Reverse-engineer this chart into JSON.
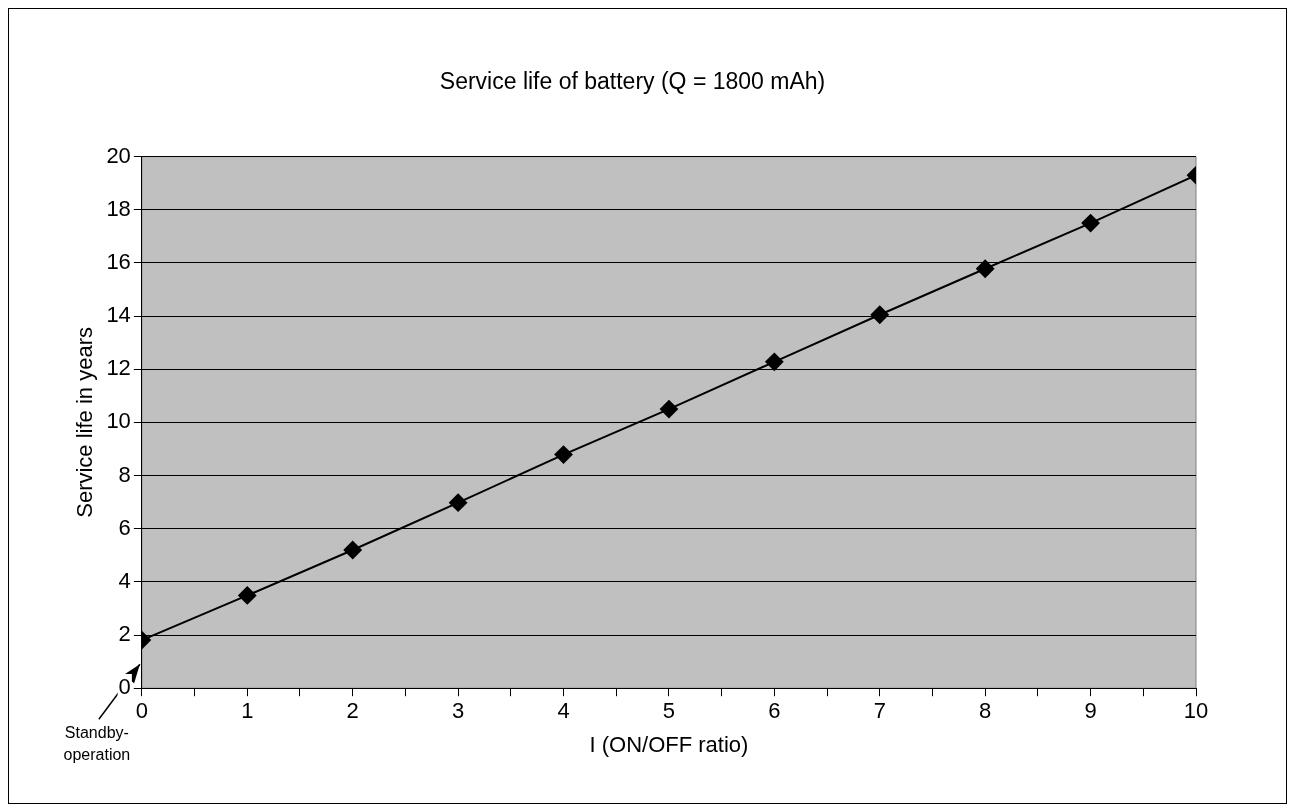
{
  "chart_data": {
    "type": "line",
    "title": "Service life of battery (Q = 1800 mAh)",
    "xlabel": "I (ON/OFF ratio)",
    "ylabel": "Service life in years",
    "x": [
      0,
      1,
      2,
      3,
      4,
      5,
      6,
      7,
      8,
      9,
      10
    ],
    "series": [
      {
        "color": "#000000",
        "values": [
          1.81,
          3.49,
          5.2,
          6.98,
          8.79,
          10.5,
          12.28,
          14.05,
          15.78,
          17.5,
          19.3
        ]
      }
    ],
    "xlim": [
      0,
      10
    ],
    "xticks": [
      0,
      {
        "value": 0.5,
        "label": null
      },
      1,
      {
        "value": 1.5,
        "label": null
      },
      2,
      {
        "value": 2.5,
        "label": null
      },
      3,
      {
        "value": 3.5,
        "label": null
      },
      4,
      {
        "value": 4.5,
        "label": null
      },
      5,
      {
        "value": 5.5,
        "label": null
      },
      6,
      {
        "value": 6.5,
        "label": null
      },
      7,
      {
        "value": 7.5,
        "label": null
      },
      8,
      {
        "value": 8.5,
        "label": null
      },
      9,
      {
        "value": 9.5,
        "label": null
      },
      10
    ],
    "ylim": [
      0,
      20
    ],
    "yticks": [
      0,
      2,
      4,
      6,
      8,
      10,
      12,
      14,
      16,
      18,
      20
    ],
    "grid": "y",
    "legend": false,
    "marker": "diamond",
    "line_style": "solid",
    "annotations": [
      "Standby-operation"
    ]
  }
}
